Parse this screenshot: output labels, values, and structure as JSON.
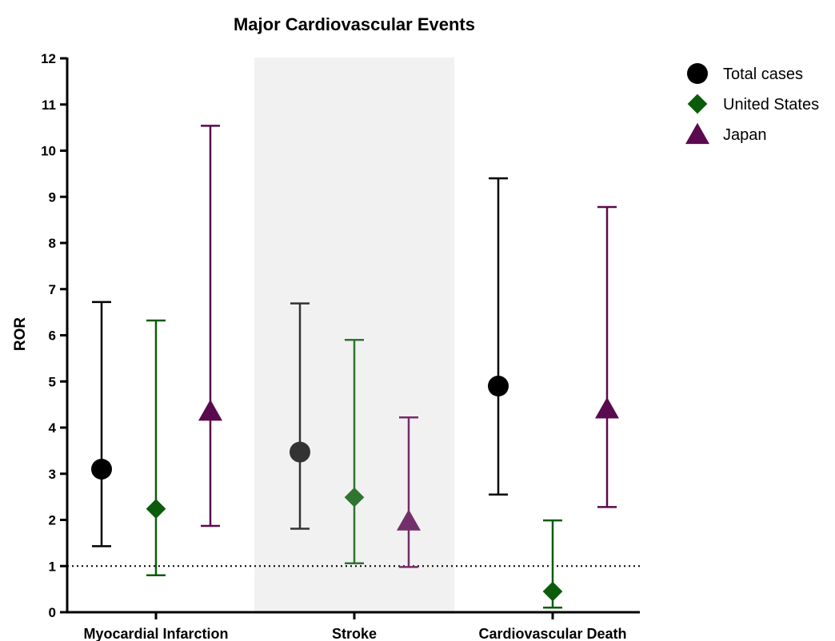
{
  "chart_data": {
    "type": "scatter",
    "title": "Major Cardiovascular Events",
    "xlabel": "",
    "ylabel": "ROR",
    "ylim": [
      0,
      12
    ],
    "yticks": [
      0,
      1,
      2,
      3,
      4,
      5,
      6,
      7,
      8,
      9,
      10,
      11,
      12
    ],
    "categories": [
      "Myocardial Infarction",
      "Stroke",
      "Cardiovascular Death"
    ],
    "reference_line": 1,
    "highlighted_category": "Stroke",
    "grid": false,
    "legend_position": "top-right",
    "series": [
      {
        "name": "Total cases",
        "marker": "circle",
        "color": "#000000",
        "values": [
          3.1,
          3.47,
          4.9
        ],
        "lower": [
          1.43,
          1.81,
          2.55
        ],
        "upper": [
          6.72,
          6.69,
          9.4
        ]
      },
      {
        "name": "United States",
        "marker": "diamond",
        "color": "#0a5c0a",
        "values": [
          2.24,
          2.49,
          0.45
        ],
        "lower": [
          0.8,
          1.06,
          0.1
        ],
        "upper": [
          6.32,
          5.9,
          1.99
        ]
      },
      {
        "name": "Japan",
        "marker": "triangle",
        "color": "#5a0a4e",
        "values": [
          4.36,
          1.98,
          4.41
        ],
        "lower": [
          1.87,
          0.98,
          2.28
        ],
        "upper": [
          10.54,
          4.22,
          8.78
        ]
      }
    ]
  }
}
